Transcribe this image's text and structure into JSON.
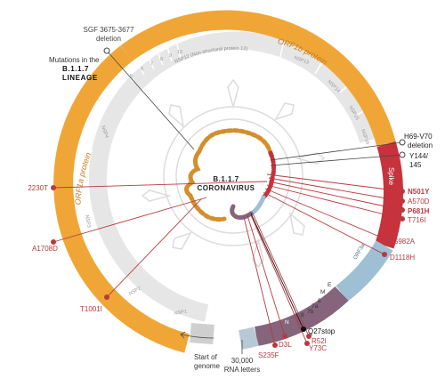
{
  "center": {
    "line1": "B.1.1.7",
    "line2": "CORONAVIRUS"
  },
  "header_note": {
    "line1": "Mutations in the",
    "line2": "B.1.1.7",
    "line3": "LINEAGE"
  },
  "outer_labels": {
    "orf1a": "ORF1a protein",
    "orf1b": "ORF1b protein",
    "spike": "Spike",
    "orf3a": "ORF3a",
    "e": "E",
    "m": "M",
    "six": "6",
    "seven_a": "7a",
    "seven_b": "7b",
    "eight": "8",
    "n": "N"
  },
  "nsp_labels": {
    "nsp1": "NSP1",
    "nsp2": "NSP2",
    "nsp3": "NSP3",
    "nsp4": "NSP4",
    "nsp5": "5",
    "nsp6": "6",
    "nsp7": "7",
    "nsp8": "8",
    "nsp9": "9",
    "nsp10": "10",
    "nsp12": "NSP12 (Non-structural protein 12)",
    "nsp13": "NSP13",
    "nsp14": "NSP14",
    "nsp15": "NSP15",
    "nsp16": "NSP16"
  },
  "annotations": {
    "sgf": {
      "line1": "SGF 3675-3677",
      "line2": "deletion"
    },
    "h69": {
      "line1": "H69-V70",
      "line2": "deletion"
    },
    "y144": {
      "line1": "Y144/",
      "line2": "145"
    },
    "start": {
      "line1": "Start of",
      "line2": "genome"
    },
    "rna": {
      "line1": "30,000",
      "line2": "RNA letters"
    }
  },
  "mutations": {
    "m2230T": "2230T",
    "mA1708D": "A1708D",
    "mT1001I": "T1001I",
    "mN501Y": "N501Y",
    "mA570D": "A570D",
    "mP681H": "P681H",
    "mT716I": "T716I",
    "mS982A": "S982A",
    "mD1118H": "D1118H",
    "mQ27stop": "Q27stop",
    "mR52I": "R52I",
    "mY73C": "Y73C",
    "mD3L": "D3L",
    "mS235F": "S235F"
  },
  "colors": {
    "orange": "#f0a637",
    "orange_label": "#c8791e",
    "gray_band": "#e3e3e3",
    "spike_red": "#c8323c",
    "blue": "#9fbfd4",
    "purple": "#85647c",
    "mutation_red": "#b83a3e",
    "text_dark": "#333333"
  }
}
